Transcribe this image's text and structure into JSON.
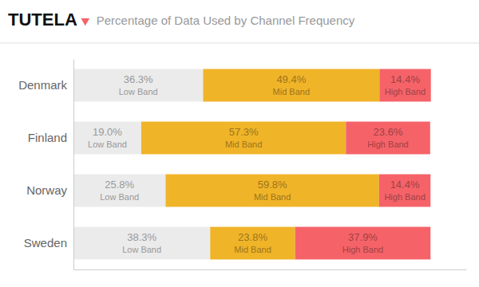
{
  "chart_data": {
    "type": "bar",
    "title": "Percentage of Data Used by Channel Frequency",
    "annotations": [
      "TUTELA"
    ],
    "orientation": "horizontal",
    "stacked": true,
    "data_labels": true,
    "grid": false,
    "tick_labels": "y",
    "categories": [
      "Denmark",
      "Finland",
      "Norway",
      "Sweden"
    ],
    "xlim": [
      0,
      110
    ],
    "series": [
      {
        "name": "Low Band",
        "color": "#ebebeb",
        "values": [
          36.3,
          19.0,
          25.8,
          38.3
        ],
        "value_labels": [
          "36.3%",
          "19.0%",
          "25.8%",
          "38.3%"
        ]
      },
      {
        "name": "Mid Band",
        "color": "#f0b429",
        "values": [
          49.4,
          57.3,
          59.8,
          23.8
        ],
        "value_labels": [
          "49.4%",
          "57.3%",
          "59.8%",
          "23.8%"
        ]
      },
      {
        "name": "High Band",
        "color": "#f56369",
        "values": [
          14.4,
          23.6,
          14.4,
          37.9
        ],
        "value_labels": [
          "14.4%",
          "23.6%",
          "14.4%",
          "37.9%"
        ]
      }
    ]
  }
}
